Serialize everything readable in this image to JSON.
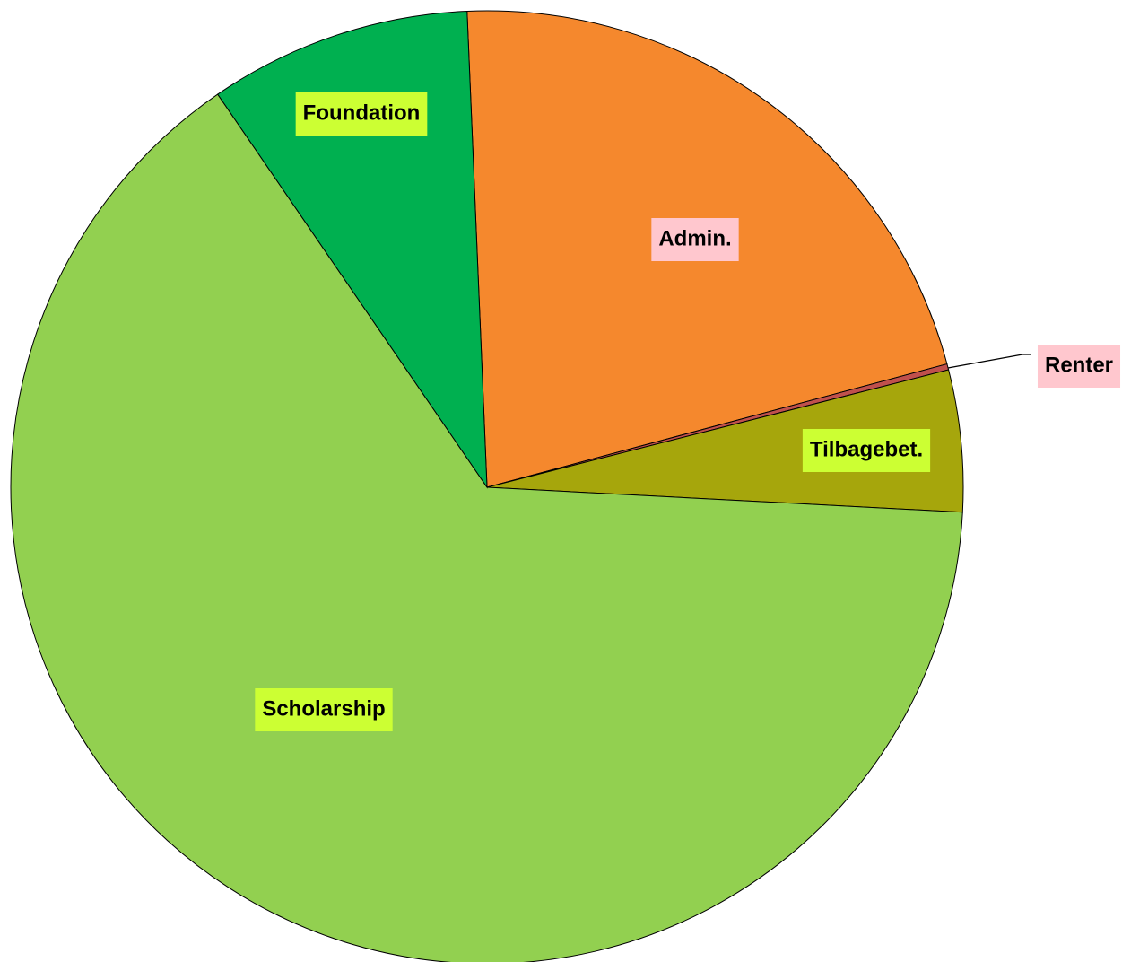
{
  "chart_data": {
    "type": "pie",
    "categories": [
      "Admin.",
      "Renter",
      "Tilbagebet.",
      "Scholarship",
      "Foundation"
    ],
    "values": [
      21.5,
      0.2,
      4.8,
      64.6,
      8.9
    ],
    "colors": [
      "#f5882d",
      "#c0504d",
      "#a6a60c",
      "#92d050",
      "#00b050"
    ],
    "label_backgrounds": [
      "#ffc7ce",
      "#ffc7ce",
      "#ccff33",
      "#ccff33",
      "#ccff33"
    ]
  }
}
